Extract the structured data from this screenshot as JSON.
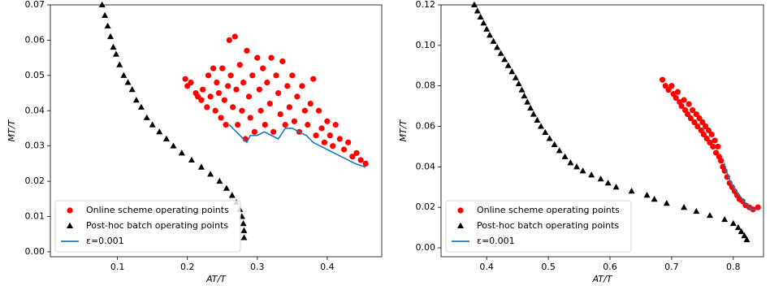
{
  "chart_data": [
    {
      "type": "scatter",
      "x_label": "AT/T",
      "y_label": "MT/T",
      "legend": "lower left",
      "xlim": [
        0.004,
        0.478
      ],
      "ylim": [
        -0.0014,
        0.07
      ],
      "xticks": [
        0.1,
        0.2,
        0.3,
        0.4
      ],
      "yticks": [
        {
          "value": 0,
          "label": "0.00"
        },
        {
          "value": 0.01,
          "label": "0.01"
        },
        {
          "value": 0.02,
          "label": "0.02"
        },
        {
          "value": 0.03,
          "label": "0.03"
        },
        {
          "value": 0.04,
          "label": "0.04"
        },
        {
          "value": 0.05,
          "label": "0.05"
        },
        {
          "value": 0.06,
          "label": "0.06"
        },
        {
          "value": 0.07,
          "label": "0.07"
        }
      ],
      "series": [
        {
          "name": "Online scheme operating points",
          "type": "scatter",
          "marker": "circle",
          "color": "#ff0000",
          "x": [
            0.197,
            0.2,
            0.205,
            0.212,
            0.215,
            0.22,
            0.222,
            0.228,
            0.23,
            0.233,
            0.237,
            0.24,
            0.242,
            0.245,
            0.248,
            0.25,
            0.253,
            0.255,
            0.258,
            0.26,
            0.262,
            0.265,
            0.268,
            0.27,
            0.272,
            0.275,
            0.278,
            0.28,
            0.283,
            0.285,
            0.288,
            0.29,
            0.293,
            0.296,
            0.3,
            0.303,
            0.305,
            0.308,
            0.311,
            0.314,
            0.318,
            0.32,
            0.323,
            0.327,
            0.33,
            0.333,
            0.336,
            0.34,
            0.343,
            0.346,
            0.35,
            0.353,
            0.357,
            0.36,
            0.364,
            0.368,
            0.372,
            0.376,
            0.38,
            0.384,
            0.388,
            0.392,
            0.396,
            0.4,
            0.404,
            0.408,
            0.412,
            0.418,
            0.424,
            0.43,
            0.436,
            0.442,
            0.448,
            0.455
          ],
          "values": [
            0.049,
            0.047,
            0.048,
            0.045,
            0.044,
            0.043,
            0.046,
            0.041,
            0.05,
            0.044,
            0.052,
            0.04,
            0.048,
            0.045,
            0.038,
            0.052,
            0.043,
            0.036,
            0.047,
            0.06,
            0.05,
            0.041,
            0.061,
            0.046,
            0.036,
            0.053,
            0.04,
            0.048,
            0.032,
            0.057,
            0.044,
            0.038,
            0.05,
            0.034,
            0.055,
            0.046,
            0.04,
            0.052,
            0.036,
            0.048,
            0.042,
            0.055,
            0.034,
            0.05,
            0.045,
            0.039,
            0.054,
            0.036,
            0.047,
            0.041,
            0.05,
            0.037,
            0.044,
            0.034,
            0.047,
            0.04,
            0.036,
            0.042,
            0.049,
            0.033,
            0.04,
            0.035,
            0.031,
            0.037,
            0.033,
            0.03,
            0.036,
            0.032,
            0.029,
            0.031,
            0.027,
            0.028,
            0.026,
            0.025
          ]
        },
        {
          "name": "Post-hoc batch operating points",
          "type": "scatter",
          "marker": "triangle",
          "color": "#000000",
          "x": [
            0.078,
            0.082,
            0.086,
            0.09,
            0.094,
            0.098,
            0.103,
            0.109,
            0.115,
            0.121,
            0.127,
            0.134,
            0.142,
            0.15,
            0.16,
            0.17,
            0.18,
            0.192,
            0.206,
            0.22,
            0.233,
            0.246,
            0.256,
            0.264,
            0.27,
            0.275,
            0.278,
            0.28,
            0.281,
            0.281
          ],
          "values": [
            0.07,
            0.067,
            0.064,
            0.061,
            0.058,
            0.056,
            0.053,
            0.05,
            0.048,
            0.046,
            0.043,
            0.041,
            0.038,
            0.036,
            0.034,
            0.032,
            0.03,
            0.028,
            0.026,
            0.024,
            0.022,
            0.02,
            0.018,
            0.016,
            0.014,
            0.012,
            0.01,
            0.008,
            0.006,
            0.004
          ]
        },
        {
          "name": "ε=0.001",
          "type": "line",
          "color": "#1f77b4",
          "x": [
            0.26,
            0.27,
            0.28,
            0.285,
            0.29,
            0.3,
            0.31,
            0.32,
            0.33,
            0.34,
            0.35,
            0.36,
            0.37,
            0.38,
            0.39,
            0.4,
            0.41,
            0.42,
            0.43,
            0.44,
            0.455
          ],
          "values": [
            0.036,
            0.034,
            0.032,
            0.031,
            0.033,
            0.033,
            0.034,
            0.033,
            0.032,
            0.035,
            0.035,
            0.034,
            0.033,
            0.031,
            0.03,
            0.029,
            0.028,
            0.027,
            0.026,
            0.025,
            0.024
          ]
        }
      ]
    },
    {
      "type": "scatter",
      "x_label": "AT/T",
      "y_label": "MT/T",
      "legend": "lower left",
      "xlim": [
        0.326,
        0.849
      ],
      "ylim": [
        -0.0044,
        0.12
      ],
      "xticks": [
        0.4,
        0.5,
        0.6,
        0.7,
        0.8
      ],
      "yticks": [
        {
          "value": 0,
          "label": "0.00"
        },
        {
          "value": 0.02,
          "label": "0.02"
        },
        {
          "value": 0.04,
          "label": "0.04"
        },
        {
          "value": 0.06,
          "label": "0.06"
        },
        {
          "value": 0.08,
          "label": "0.08"
        },
        {
          "value": 0.1,
          "label": "0.10"
        },
        {
          "value": 0.12,
          "label": "0.12"
        }
      ],
      "series": [
        {
          "name": "Online scheme operating points",
          "type": "scatter",
          "marker": "circle",
          "color": "#ff0000",
          "x": [
            0.685,
            0.69,
            0.695,
            0.7,
            0.703,
            0.707,
            0.71,
            0.713,
            0.716,
            0.72,
            0.722,
            0.726,
            0.728,
            0.731,
            0.734,
            0.737,
            0.74,
            0.742,
            0.745,
            0.748,
            0.75,
            0.752,
            0.755,
            0.757,
            0.76,
            0.762,
            0.765,
            0.767,
            0.77,
            0.772,
            0.775,
            0.777,
            0.78,
            0.783,
            0.786,
            0.79,
            0.794,
            0.798,
            0.802,
            0.806,
            0.81,
            0.815,
            0.82,
            0.826,
            0.832,
            0.84
          ],
          "values": [
            0.083,
            0.08,
            0.078,
            0.08,
            0.076,
            0.074,
            0.077,
            0.072,
            0.07,
            0.073,
            0.068,
            0.066,
            0.071,
            0.064,
            0.068,
            0.062,
            0.066,
            0.06,
            0.064,
            0.058,
            0.062,
            0.056,
            0.06,
            0.054,
            0.058,
            0.052,
            0.056,
            0.05,
            0.053,
            0.047,
            0.05,
            0.045,
            0.043,
            0.04,
            0.038,
            0.035,
            0.032,
            0.03,
            0.028,
            0.026,
            0.024,
            0.023,
            0.021,
            0.02,
            0.019,
            0.02
          ]
        },
        {
          "name": "Post-hoc batch operating points",
          "type": "scatter",
          "marker": "triangle",
          "color": "#000000",
          "x": [
            0.38,
            0.385,
            0.39,
            0.395,
            0.4,
            0.405,
            0.411,
            0.417,
            0.423,
            0.429,
            0.435,
            0.441,
            0.447,
            0.452,
            0.457,
            0.461,
            0.466,
            0.471,
            0.476,
            0.482,
            0.488,
            0.495,
            0.502,
            0.51,
            0.518,
            0.527,
            0.536,
            0.546,
            0.556,
            0.57,
            0.585,
            0.597,
            0.61,
            0.635,
            0.66,
            0.672,
            0.692,
            0.72,
            0.74,
            0.762,
            0.786,
            0.8,
            0.808,
            0.813,
            0.818,
            0.822
          ],
          "values": [
            0.12,
            0.117,
            0.114,
            0.111,
            0.108,
            0.105,
            0.102,
            0.099,
            0.096,
            0.093,
            0.09,
            0.087,
            0.084,
            0.081,
            0.078,
            0.075,
            0.072,
            0.069,
            0.066,
            0.063,
            0.06,
            0.057,
            0.054,
            0.051,
            0.048,
            0.045,
            0.042,
            0.04,
            0.038,
            0.036,
            0.034,
            0.032,
            0.03,
            0.028,
            0.026,
            0.024,
            0.022,
            0.02,
            0.018,
            0.016,
            0.014,
            0.012,
            0.01,
            0.008,
            0.006,
            0.004
          ]
        },
        {
          "name": "ε=0.001",
          "type": "line",
          "color": "#1f77b4",
          "x": [
            0.785,
            0.79,
            0.795,
            0.8,
            0.805,
            0.81,
            0.815,
            0.82,
            0.825,
            0.83,
            0.838
          ],
          "values": [
            0.042,
            0.037,
            0.033,
            0.03,
            0.028,
            0.026,
            0.024,
            0.022,
            0.02,
            0.019,
            0.019
          ]
        }
      ]
    }
  ]
}
